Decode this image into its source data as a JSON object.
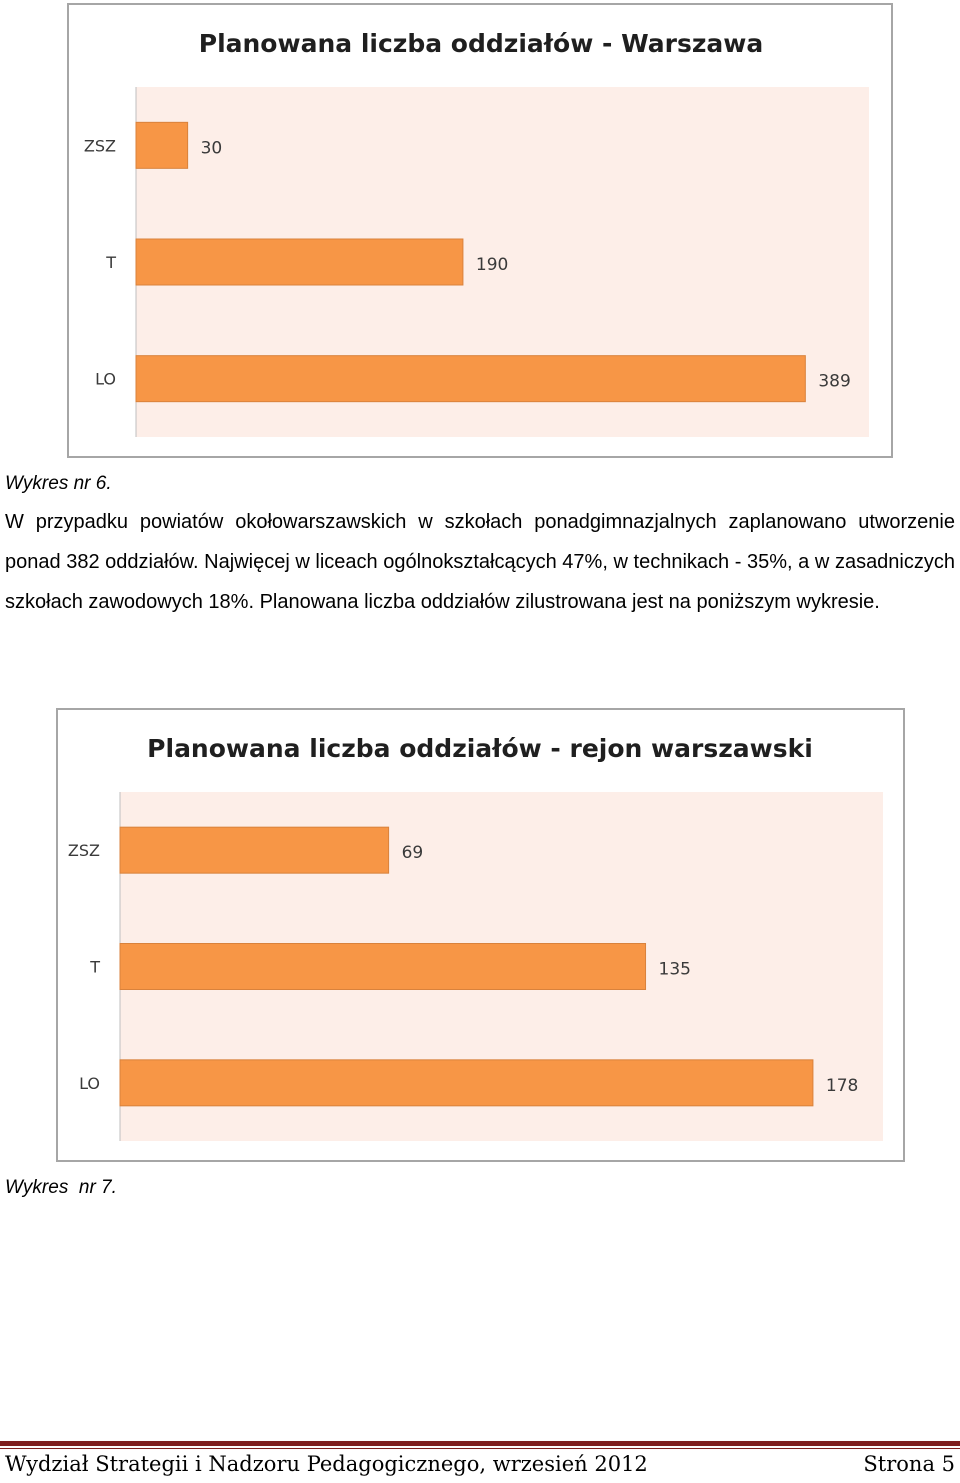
{
  "colors": {
    "bar": "#f79646",
    "bar_stroke": "#d9823c",
    "plot_bg": "#fdeee8",
    "footer_rule": "#7f1f1f"
  },
  "chart_data": [
    {
      "type": "bar",
      "orientation": "horizontal",
      "title": "Planowana liczba oddziałów - Warszawa",
      "categories": [
        "ZSZ",
        "T",
        "LO"
      ],
      "values": [
        30,
        190,
        389
      ],
      "xlim": [
        0,
        426
      ]
    },
    {
      "type": "bar",
      "orientation": "horizontal",
      "title": "Planowana liczba oddziałów - rejon warszawski",
      "categories": [
        "ZSZ",
        "T",
        "LO"
      ],
      "values": [
        69,
        135,
        178
      ],
      "xlim": [
        0,
        196
      ]
    }
  ],
  "captions": {
    "chart1": "Wykres nr 6.",
    "chart2": "Wykres  nr 7."
  },
  "paragraph": "W przypadku powiatów okołowarszawskich w szkołach ponadgimnazjalnych zaplanowano utworzenie ponad 382 oddziałów. Najwięcej w liceach ogólnokształcących 47%, w technikach - 35%, a w zasadniczych szkołach zawodowych 18%. Planowana liczba oddziałów zilustrowana jest na poniższym wykresie.",
  "footer": {
    "left": "Wydział Strategii i Nadzoru Pedagogicznego,  wrzesień 2012",
    "right": "Strona 5"
  }
}
